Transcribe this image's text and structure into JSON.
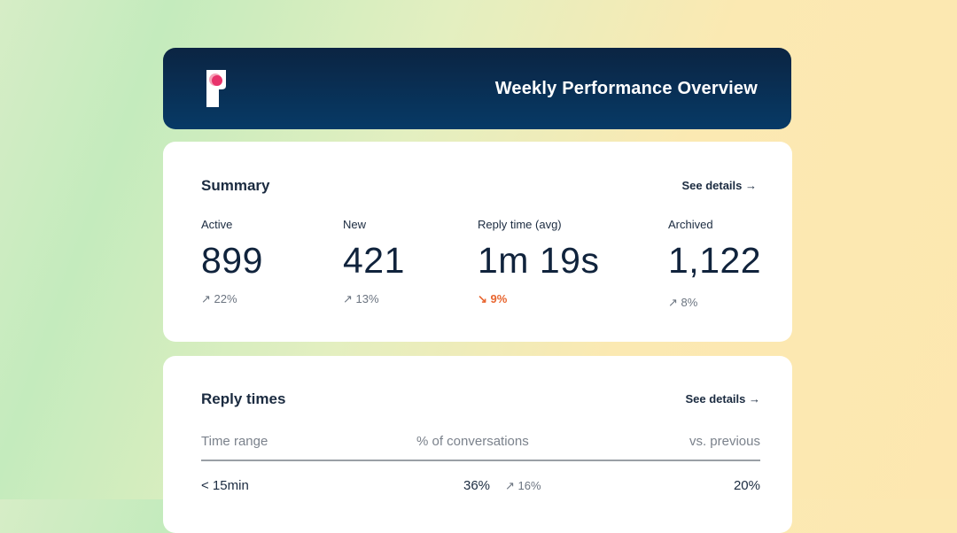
{
  "header": {
    "title": "Weekly Performance Overview",
    "logo": "brand-logo"
  },
  "summary": {
    "title": "Summary",
    "see_details": "See details →",
    "stats": [
      {
        "label": "Active",
        "value": "899",
        "change": "↗ 22%",
        "direction": "up"
      },
      {
        "label": "New",
        "value": "421",
        "change": "↗ 13%",
        "direction": "up"
      },
      {
        "label": "Reply time (avg)",
        "value": "1m 19s",
        "change": "↘ 9%",
        "direction": "down"
      },
      {
        "label": "Archived",
        "value": "1,122",
        "change": "↗ 8%",
        "direction": "up"
      }
    ]
  },
  "reply_times": {
    "title": "Reply times",
    "see_details": "See details →",
    "columns": [
      "Time range",
      "% of conversations",
      "vs. previous"
    ],
    "rows": [
      {
        "range": "< 15min",
        "percent": "36%",
        "change": "↗ 16%",
        "previous": "20%"
      }
    ]
  },
  "colors": {
    "header_bg": "#0b2442",
    "down": "#e8652f",
    "accent": "#e8336b"
  }
}
